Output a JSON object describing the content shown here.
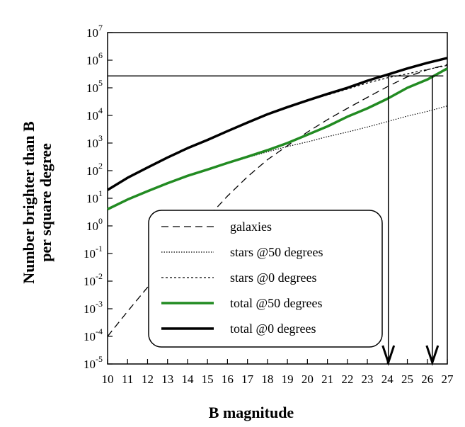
{
  "chart_data": {
    "type": "line",
    "title": "",
    "xlabel": "B magnitude",
    "ylabel": [
      "Number brighter than B",
      "per square degree"
    ],
    "xlim": [
      10,
      27
    ],
    "ylim_log10": [
      -5,
      7
    ],
    "yscale": "log",
    "x_ticks": [
      "10",
      "11",
      "12",
      "13",
      "14",
      "15",
      "16",
      "17",
      "18",
      "19",
      "20",
      "21",
      "22",
      "23",
      "24",
      "25",
      "26",
      "27"
    ],
    "y_ticks": [
      {
        "base": "10",
        "exp": "-5"
      },
      {
        "base": "10",
        "exp": "-4"
      },
      {
        "base": "10",
        "exp": "-3"
      },
      {
        "base": "10",
        "exp": "-2"
      },
      {
        "base": "10",
        "exp": "-1"
      },
      {
        "base": "10",
        "exp": "0"
      },
      {
        "base": "10",
        "exp": "1"
      },
      {
        "base": "10",
        "exp": "2"
      },
      {
        "base": "10",
        "exp": "3"
      },
      {
        "base": "10",
        "exp": "4"
      },
      {
        "base": "10",
        "exp": "5"
      },
      {
        "base": "10",
        "exp": "6"
      },
      {
        "base": "10",
        "exp": "7"
      }
    ],
    "legend_position": "lower-center",
    "series": [
      {
        "name": "galaxies",
        "style": "dashed-long",
        "color": "#000000",
        "x": [
          10,
          11,
          12,
          13,
          14,
          15,
          16,
          17,
          18,
          19,
          20,
          21,
          22,
          23,
          24,
          25,
          26,
          27
        ],
        "y": [
          0.0001,
          0.0008,
          0.006,
          0.04,
          0.3,
          2,
          12,
          60,
          250,
          800,
          2500,
          7000,
          18000,
          45000,
          110000,
          250000,
          450000,
          700000
        ]
      },
      {
        "name": "stars @50 degrees",
        "style": "dotted",
        "color": "#000000",
        "x": [
          10,
          11,
          12,
          13,
          14,
          15,
          16,
          17,
          18,
          19,
          20,
          21,
          22,
          23,
          24,
          25,
          26,
          27
        ],
        "y": [
          4,
          9,
          18,
          35,
          65,
          110,
          180,
          300,
          480,
          750,
          1100,
          1700,
          2500,
          3800,
          6000,
          9500,
          14000,
          22000
        ]
      },
      {
        "name": "stars @0 degrees",
        "style": "dashed-short",
        "color": "#000000",
        "x": [
          10,
          11,
          12,
          13,
          14,
          15,
          16,
          17,
          18,
          19,
          20,
          21,
          22,
          23,
          24,
          25,
          26,
          27
        ],
        "y": [
          20,
          55,
          130,
          300,
          650,
          1300,
          2700,
          5500,
          11000,
          20000,
          35000,
          55000,
          90000,
          150000,
          230000,
          320000,
          460000,
          650000
        ]
      },
      {
        "name": "total @50 degrees",
        "style": "solid",
        "color": "#228b22",
        "x": [
          10,
          11,
          12,
          13,
          14,
          15,
          16,
          17,
          18,
          19,
          20,
          21,
          22,
          23,
          24,
          25,
          26,
          27
        ],
        "y": [
          4,
          9,
          18,
          35,
          65,
          110,
          190,
          320,
          550,
          1000,
          2000,
          4000,
          9000,
          18000,
          40000,
          100000,
          200000,
          500000
        ]
      },
      {
        "name": "total @0 degrees",
        "style": "solid-thick",
        "color": "#000000",
        "x": [
          10,
          11,
          12,
          13,
          14,
          15,
          16,
          17,
          18,
          19,
          20,
          21,
          22,
          23,
          24,
          25,
          26,
          27
        ],
        "y": [
          20,
          55,
          130,
          300,
          650,
          1300,
          2700,
          5500,
          11000,
          20000,
          35000,
          60000,
          100000,
          180000,
          300000,
          500000,
          800000,
          1200000
        ]
      }
    ],
    "reference_lines": [
      {
        "type": "horizontal",
        "y": 270000,
        "x_range": [
          10,
          26.8
        ]
      },
      {
        "type": "arrow-down",
        "x": 24.05,
        "y_from": 270000,
        "y_to": 1e-05
      },
      {
        "type": "arrow-down",
        "x": 26.25,
        "y_from": 270000,
        "y_to": 1e-05
      }
    ]
  }
}
